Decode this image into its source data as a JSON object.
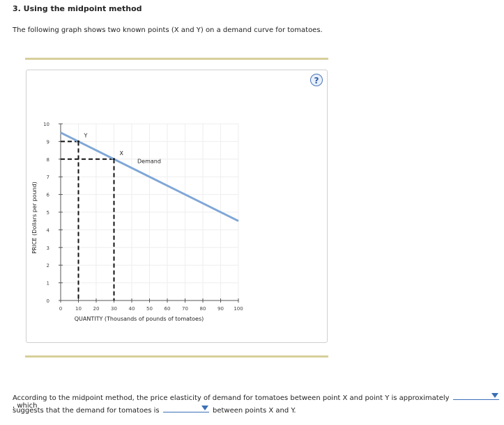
{
  "question": {
    "title": "3. Using the midpoint method",
    "intro": "The following graph shows two known points (X and Y) on a demand curve for tomatoes.",
    "help_symbol": "?"
  },
  "chart_data": {
    "type": "line",
    "xlabel": "QUANTITY (Thousands of pounds of tomatoes)",
    "ylabel": "PRICE (Dollars per pound)",
    "xlim": [
      0,
      100
    ],
    "ylim": [
      0,
      10
    ],
    "xticks": [
      0,
      10,
      20,
      30,
      40,
      50,
      60,
      70,
      80,
      90,
      100
    ],
    "yticks": [
      0,
      1,
      2,
      3,
      4,
      5,
      6,
      7,
      8,
      9,
      10
    ],
    "grid": true,
    "series": [
      {
        "name": "Demand",
        "color": "#7fa7d6",
        "x": [
          0,
          100
        ],
        "y": [
          9.5,
          4.5
        ]
      }
    ],
    "points": [
      {
        "label": "Y",
        "x": 10,
        "y": 9
      },
      {
        "label": "X",
        "x": 30,
        "y": 8
      }
    ]
  },
  "answer": {
    "line1_text": "According to the midpoint method, the price elasticity of demand for tomatoes between point X and point Y is approximately",
    "line1_tail": ", which",
    "line2_text": "suggests that the demand for tomatoes is",
    "line2_tail": "between points X and Y.",
    "dropdown1_value": "",
    "dropdown2_value": ""
  }
}
